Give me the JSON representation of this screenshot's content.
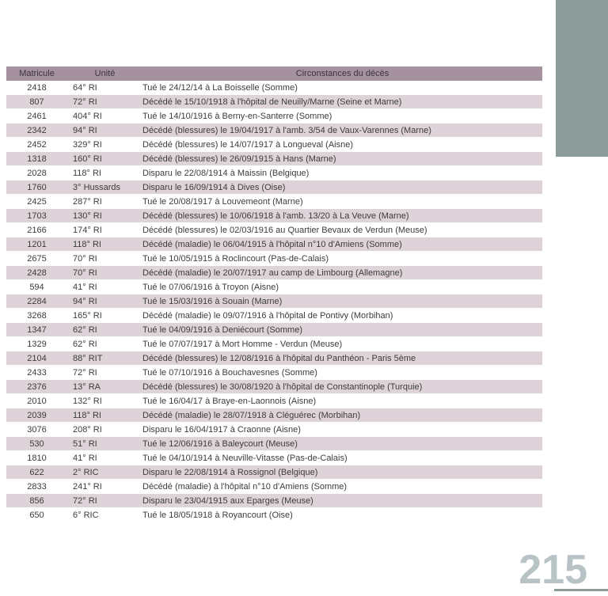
{
  "page": {
    "number": "215"
  },
  "colors": {
    "header_bg": "#a6929e",
    "row_alt_bg": "#ddd3d9",
    "side_block": "#8c9a99",
    "page_number_color": "#b8c3c6",
    "rule_color": "#8c9a99",
    "text": "#3c3c3c"
  },
  "table": {
    "headers": {
      "matricule": "Matricule",
      "unite": "Unité",
      "circonstances": "Circonstances du décès"
    },
    "rows": [
      {
        "matricule": "2418",
        "unite": "64° RI",
        "circonstances": "Tué le 24/12/14 à La Boisselle (Somme)"
      },
      {
        "matricule": "807",
        "unite": "72° RI",
        "circonstances": "Décédé le 15/10/1918 à l'hôpital de Neuilly/Marne (Seine et Marne)"
      },
      {
        "matricule": "2461",
        "unite": "404° RI",
        "circonstances": "Tué le 14/10/1916 à Berny-en-Santerre (Somme)"
      },
      {
        "matricule": "2342",
        "unite": "94° RI",
        "circonstances": "Décédé (blessures) le 19/04/1917 à l'amb. 3/54 de Vaux-Varennes (Marne)"
      },
      {
        "matricule": "2452",
        "unite": "329° RI",
        "circonstances": "Décédé (blessures) le 14/07/1917 à Longueval (Aisne)"
      },
      {
        "matricule": "1318",
        "unite": "160° RI",
        "circonstances": "Décédé (blessures) le 26/09/1915 à Hans (Marne)"
      },
      {
        "matricule": "2028",
        "unite": "118° RI",
        "circonstances": "Disparu le 22/08/1914 à Maissin (Belgique)"
      },
      {
        "matricule": "1760",
        "unite": "3° Hussards",
        "circonstances": "Disparu le 16/09/1914 à Dives (Oise)"
      },
      {
        "matricule": "2425",
        "unite": "287° RI",
        "circonstances": "Tué le 20/08/1917 à Louvemeont (Marne)"
      },
      {
        "matricule": "1703",
        "unite": "130° RI",
        "circonstances": "Décédé (blessures) le 10/06/1918 à l'amb. 13/20 à La Veuve (Marne)"
      },
      {
        "matricule": "2166",
        "unite": "174° RI",
        "circonstances": "Décédé (blessures) le 02/03/1916 au Quartier Bevaux  de Verdun (Meuse)"
      },
      {
        "matricule": "1201",
        "unite": "118° RI",
        "circonstances": "Décédé (maladie) le 06/04/1915 à l'hôpital n°10 d'Amiens (Somme)"
      },
      {
        "matricule": "2675",
        "unite": "70° RI",
        "circonstances": "Tué le 10/05/1915 à Roclincourt (Pas-de-Calais)"
      },
      {
        "matricule": "2428",
        "unite": "70° RI",
        "circonstances": "Décédé (maladie) le 20/07/1917 au camp de Limbourg (Allemagne)"
      },
      {
        "matricule": "594",
        "unite": "41° RI",
        "circonstances": "Tué le 07/06/1916 à Troyon (Aisne)"
      },
      {
        "matricule": "2284",
        "unite": "94° RI",
        "circonstances": "Tué le 15/03/1916 à Souain (Marne)"
      },
      {
        "matricule": "3268",
        "unite": "165° RI",
        "circonstances": "Décédé (maladie) le 09/07/1916 à l'hôpital de Pontivy (Morbihan)"
      },
      {
        "matricule": "1347",
        "unite": "62° RI",
        "circonstances": "Tué le 04/09/1916 à Deniécourt (Somme)"
      },
      {
        "matricule": "1329",
        "unite": "62° RI",
        "circonstances": "Tué le 07/07/1917 à Mort Homme - Verdun (Meuse)"
      },
      {
        "matricule": "2104",
        "unite": "88° RIT",
        "circonstances": "Décédé (blessures) le 12/08/1916 à l'hôpital du Panthéon - Paris 5ème"
      },
      {
        "matricule": "2433",
        "unite": "72° RI",
        "circonstances": "Tué le 07/10/1916 à Bouchavesnes (Somme)"
      },
      {
        "matricule": "2376",
        "unite": "13° RA",
        "circonstances": "Décédé (blessures) le 30/08/1920 à l'hôpital de Constantinople (Turquie)"
      },
      {
        "matricule": "2010",
        "unite": "132° RI",
        "circonstances": "Tué le 16/04/17 à Braye-en-Laonnois (Aisne)"
      },
      {
        "matricule": "2039",
        "unite": "118° RI",
        "circonstances": "Décédé (maladie) le 28/07/1918 à Cléguérec (Morbihan)"
      },
      {
        "matricule": "3076",
        "unite": "208° RI",
        "circonstances": "Disparu le 16/04/1917 à Craonne (Aisne)"
      },
      {
        "matricule": "530",
        "unite": "51° RI",
        "circonstances": "Tué le 12/06/1916 à Baleycourt (Meuse)"
      },
      {
        "matricule": "1810",
        "unite": "41° RI",
        "circonstances": "Tué le 04/10/1914 à Neuville-Vitasse (Pas-de-Calais)"
      },
      {
        "matricule": "622",
        "unite": "2° RIC",
        "circonstances": "Disparu le 22/08/1914 à Rossignol (Belgique)"
      },
      {
        "matricule": "2833",
        "unite": "241° RI",
        "circonstances": "Décédé (maladie) à l'hôpital n°10 d'Amiens (Somme)"
      },
      {
        "matricule": "856",
        "unite": "72° RI",
        "circonstances": "Disparu le 23/04/1915 aux Eparges (Meuse)"
      },
      {
        "matricule": "650",
        "unite": "6° RIC",
        "circonstances": "Tué le 18/05/1918 à Royancourt (Oise)"
      }
    ]
  }
}
